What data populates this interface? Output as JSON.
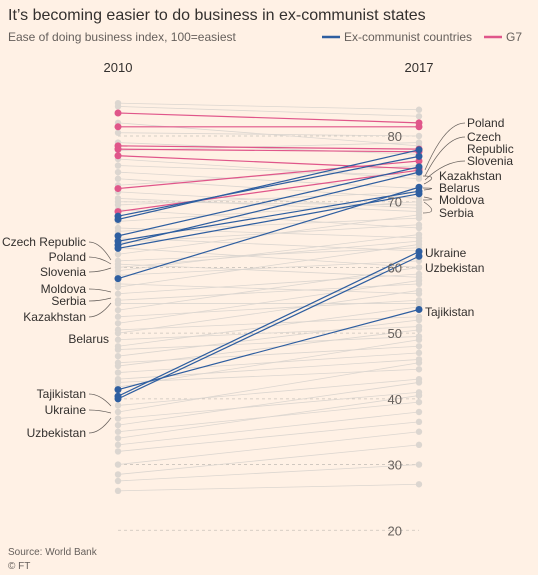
{
  "chart_data": {
    "type": "line",
    "title": "It’s becoming easier to do business in ex-communist states",
    "subtitle": "Ease of doing business index, 100=easiest",
    "x": [
      "2010",
      "2017"
    ],
    "yticks": [
      20,
      30,
      40,
      50,
      60,
      70,
      80
    ],
    "ylim": [
      17,
      87
    ],
    "grid": true,
    "legend": [
      {
        "name": "Ex-communist countries",
        "color": "#2e5ea0"
      },
      {
        "name": "G7",
        "color": "#e0568a"
      }
    ],
    "colors": {
      "ex": "#2e5ea0",
      "g7": "#e0568a",
      "other": "#dcd6d0",
      "background": "#fff1e5"
    },
    "series": [
      {
        "name": "Poland",
        "group": "ex",
        "values": [
          67.3,
          77.9
        ]
      },
      {
        "name": "Czech Republic",
        "group": "ex",
        "values": [
          67.8,
          76.9
        ]
      },
      {
        "name": "Slovenia",
        "group": "ex",
        "values": [
          64.8,
          75.3
        ]
      },
      {
        "name": "Kazakhstan",
        "group": "ex",
        "values": [
          63.4,
          74.5
        ]
      },
      {
        "name": "Belarus",
        "group": "ex",
        "values": [
          58.3,
          72.2
        ]
      },
      {
        "name": "Moldova",
        "group": "ex",
        "values": [
          64.0,
          71.6
        ]
      },
      {
        "name": "Serbia",
        "group": "ex",
        "values": [
          62.9,
          71.2
        ]
      },
      {
        "name": "Ukraine",
        "group": "ex",
        "values": [
          40.4,
          62.4
        ]
      },
      {
        "name": "Uzbekistan",
        "group": "ex",
        "values": [
          40.0,
          61.7
        ]
      },
      {
        "name": "Tajikistan",
        "group": "ex",
        "values": [
          41.4,
          53.6
        ]
      },
      {
        "name": "",
        "group": "g7",
        "values": [
          83.5,
          82.0
        ]
      },
      {
        "name": "",
        "group": "g7",
        "values": [
          81.4,
          81.4
        ]
      },
      {
        "name": "",
        "group": "g7",
        "values": [
          78.5,
          78.0
        ]
      },
      {
        "name": "",
        "group": "g7",
        "values": [
          78.0,
          77.6
        ]
      },
      {
        "name": "",
        "group": "g7",
        "values": [
          77.0,
          75.0
        ]
      },
      {
        "name": "",
        "group": "g7",
        "values": [
          72.0,
          76.2
        ]
      },
      {
        "name": "",
        "group": "g7",
        "values": [
          68.5,
          74.8
        ]
      }
    ],
    "other_values": [
      [
        82.0,
        78.5
      ],
      [
        80.5,
        80.0
      ],
      [
        79.0,
        77.2
      ],
      [
        77.8,
        79.0
      ],
      [
        76.5,
        73.5
      ],
      [
        75.5,
        74.0
      ],
      [
        74.5,
        72.0
      ],
      [
        73.5,
        70.5
      ],
      [
        72.5,
        75.5
      ],
      [
        71.5,
        69.0
      ],
      [
        70.5,
        68.5
      ],
      [
        69.5,
        71.5
      ],
      [
        68.8,
        66.0
      ],
      [
        67.0,
        70.0
      ],
      [
        66.0,
        64.5
      ],
      [
        65.5,
        67.5
      ],
      [
        64.5,
        62.5
      ],
      [
        63.8,
        66.5
      ],
      [
        63.0,
        60.0
      ],
      [
        62.0,
        68.0
      ],
      [
        61.0,
        63.0
      ],
      [
        60.5,
        58.5
      ],
      [
        59.5,
        65.0
      ],
      [
        58.8,
        61.0
      ],
      [
        57.5,
        56.0
      ],
      [
        57.0,
        63.5
      ],
      [
        56.0,
        59.0
      ],
      [
        55.0,
        57.5
      ],
      [
        54.5,
        54.5
      ],
      [
        53.5,
        60.0
      ],
      [
        52.5,
        55.0
      ],
      [
        51.5,
        58.0
      ],
      [
        50.5,
        52.5
      ],
      [
        50.0,
        56.5
      ],
      [
        49.0,
        51.0
      ],
      [
        48.0,
        54.0
      ],
      [
        47.5,
        49.5
      ],
      [
        46.5,
        52.0
      ],
      [
        45.5,
        48.0
      ],
      [
        45.0,
        50.5
      ],
      [
        44.0,
        47.0
      ],
      [
        43.0,
        46.0
      ],
      [
        42.5,
        44.5
      ],
      [
        41.8,
        49.0
      ],
      [
        39.0,
        43.0
      ],
      [
        38.0,
        45.5
      ],
      [
        37.0,
        41.0
      ],
      [
        36.0,
        42.5
      ],
      [
        35.0,
        39.5
      ],
      [
        34.0,
        40.5
      ],
      [
        33.0,
        38.0
      ],
      [
        32.0,
        36.5
      ],
      [
        30.0,
        35.0
      ],
      [
        28.5,
        33.0
      ],
      [
        27.5,
        30.0
      ],
      [
        26.0,
        27.0
      ],
      [
        84.5,
        83.0
      ],
      [
        85.0,
        84.0
      ],
      [
        70.0,
        69.5
      ],
      [
        60.0,
        64.0
      ]
    ],
    "labels_2010": [
      "Czech Republic",
      "Poland",
      "Slovenia",
      "Moldova",
      "Serbia",
      "Kazakhstan",
      "Belarus",
      "Tajikistan",
      "Ukraine",
      "Uzbekistan"
    ],
    "labels_2017": [
      "Poland",
      "Czech",
      "Republic",
      "Slovenia",
      "Kazakhstan",
      "Belarus",
      "Moldova",
      "Serbia",
      "Ukraine",
      "Uzbekistan",
      "Tajikistan"
    ]
  },
  "footer": {
    "source": "Source: World Bank",
    "credit": "© FT"
  }
}
